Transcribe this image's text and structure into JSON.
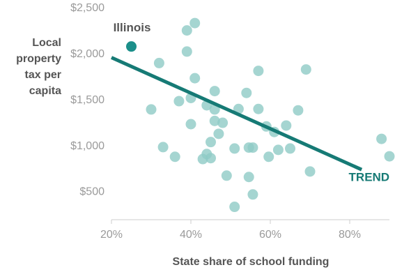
{
  "chart_data": {
    "type": "scatter",
    "ylabel": "Local property tax per capita",
    "xlabel": "State share of school funding",
    "x": [
      39,
      41,
      39,
      32,
      41,
      57,
      69,
      30,
      37,
      40,
      46,
      54,
      44,
      46,
      52,
      57,
      67,
      40,
      46,
      48,
      59,
      61,
      64,
      47,
      45,
      33,
      36,
      44,
      43,
      45,
      51,
      54.6,
      55.6,
      59.6,
      62,
      65,
      88,
      90,
      70,
      49,
      54.6,
      55.6,
      51
    ],
    "values": [
      2260,
      2340,
      2030,
      1905,
      1740,
      1820,
      1835,
      1400,
      1490,
      1525,
      1600,
      1580,
      1445,
      1400,
      1405,
      1405,
      1390,
      1240,
      1275,
      1255,
      1215,
      1155,
      1225,
      1135,
      1045,
      990,
      885,
      915,
      860,
      870,
      975,
      985,
      985,
      885,
      960,
      975,
      1080,
      890,
      725,
      680,
      665,
      475,
      340
    ],
    "color": "#8fcac5",
    "highlight": {
      "text": "Illinois",
      "x": 25,
      "y": 2085,
      "color": "#1b8f8a"
    },
    "trend": {
      "text": "TREND",
      "x": [
        20,
        83
      ],
      "y": [
        1965,
        745
      ],
      "color": "#167a75"
    },
    "xlim": [
      20,
      90
    ],
    "ylim": [
      200,
      2500
    ],
    "xticks": [
      {
        "value": 20,
        "label": "20%"
      },
      {
        "value": 40,
        "label": "40%"
      },
      {
        "value": 60,
        "label": "60%"
      },
      {
        "value": 80,
        "label": "80%"
      }
    ],
    "yticks": [
      {
        "value": 500,
        "label": "$500"
      },
      {
        "value": 1000,
        "label": "$1,000"
      },
      {
        "value": 1500,
        "label": "$1,500"
      },
      {
        "value": 2000,
        "label": "$2,000"
      },
      {
        "value": 2500,
        "label": "$2,500"
      }
    ]
  }
}
